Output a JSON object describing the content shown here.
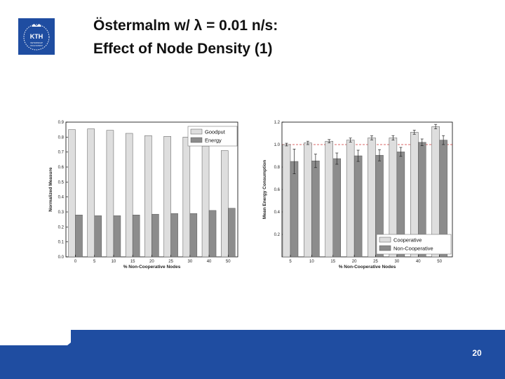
{
  "slide": {
    "title_line1": "Östermalm w/ λ = 0.01 n/s:",
    "title_line2": "Effect of Node Density (1)",
    "page_number": "20",
    "logo_text": "KTH VETENSKAP OCH KONST",
    "colors": {
      "brand_blue": "#1f4da1",
      "light_bar": "#dedede",
      "dark_bar": "#8c8c8c",
      "ref_line": "#cc3333"
    }
  },
  "chart_data": [
    {
      "type": "bar",
      "title": "",
      "xlabel": "% Non-Cooperative Nodes",
      "ylabel": "Normalized Measure",
      "categories": [
        "0",
        "5",
        "10",
        "15",
        "20",
        "25",
        "30",
        "40",
        "50"
      ],
      "series": [
        {
          "name": "Goodput",
          "values": [
            0.85,
            0.855,
            0.845,
            0.825,
            0.81,
            0.805,
            0.8,
            0.74,
            0.71
          ]
        },
        {
          "name": "Energy",
          "values": [
            0.28,
            0.275,
            0.275,
            0.28,
            0.285,
            0.29,
            0.29,
            0.31,
            0.325
          ]
        }
      ],
      "ylim": [
        0,
        0.9
      ],
      "yticks": [
        "0.0",
        "0.1",
        "0.2",
        "0.3",
        "0.4",
        "0.5",
        "0.6",
        "0.7",
        "0.8",
        "0.9"
      ],
      "grid": false,
      "legend": "top-right"
    },
    {
      "type": "bar",
      "title": "",
      "xlabel": "% Non-Cooperative Nodes",
      "ylabel": "Mean Energy Consumption",
      "categories": [
        "5",
        "10",
        "15",
        "20",
        "25",
        "30",
        "40",
        "50"
      ],
      "series": [
        {
          "name": "Cooperative",
          "values": [
            1.0,
            1.015,
            1.03,
            1.04,
            1.06,
            1.06,
            1.11,
            1.16
          ],
          "errors": [
            0.012,
            0.015,
            0.015,
            0.018,
            0.018,
            0.02,
            0.018,
            0.02
          ]
        },
        {
          "name": "Non-Cooperative",
          "values": [
            0.85,
            0.855,
            0.875,
            0.9,
            0.905,
            0.935,
            1.02,
            1.04
          ],
          "errors": [
            0.11,
            0.06,
            0.05,
            0.05,
            0.05,
            0.04,
            0.03,
            0.04
          ]
        }
      ],
      "reference_line": 1.0,
      "ylim": [
        0,
        1.2
      ],
      "yticks": [
        "0.2",
        "0.4",
        "0.6",
        "0.8",
        "1.0",
        "1.2"
      ],
      "grid": false,
      "legend": "bottom-right"
    }
  ]
}
